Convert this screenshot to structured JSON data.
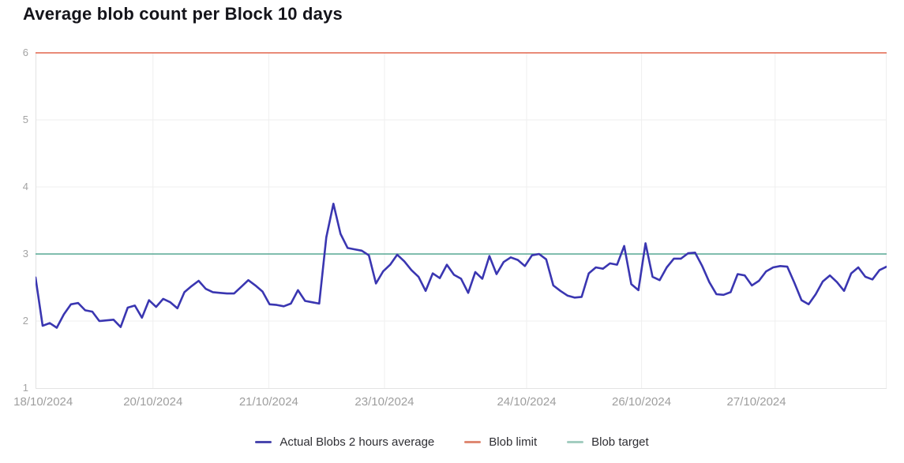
{
  "title": "Average blob count per Block 10 days",
  "chart_data": {
    "type": "line",
    "title": "Average blob count per Block 10 days",
    "xlabel": "",
    "ylabel": "",
    "ylim": [
      1,
      6
    ],
    "y_ticks": [
      1,
      2,
      3,
      4,
      5,
      6
    ],
    "grid": true,
    "x_axis_kind": "time",
    "x_tick_labels": [
      "18/10/2024",
      "20/10/2024",
      "21/10/2024",
      "23/10/2024",
      "24/10/2024",
      "26/10/2024",
      "27/10/2024"
    ],
    "x_tick_pct": [
      0.9,
      13.8,
      27.4,
      41.0,
      57.7,
      71.2,
      84.7
    ],
    "v_grid_pct": [
      13.8,
      27.4,
      41.0,
      57.7,
      71.2,
      86.9,
      100
    ],
    "h_grid_values": [
      2,
      3,
      4,
      5
    ],
    "legend_position": "bottom-center",
    "series": [
      {
        "name": "Actual Blobs 2 hours average",
        "kind": "data-line",
        "color": "#3a36b1",
        "marker_color": "#4a47ae",
        "points_interval": "2 hours",
        "values": [
          2.65,
          1.93,
          1.97,
          1.9,
          2.1,
          2.25,
          2.27,
          2.16,
          2.14,
          2.0,
          2.01,
          2.02,
          1.91,
          2.2,
          2.23,
          2.05,
          2.31,
          2.21,
          2.33,
          2.28,
          2.19,
          2.43,
          2.52,
          2.6,
          2.48,
          2.43,
          2.42,
          2.41,
          2.41,
          2.51,
          2.61,
          2.53,
          2.44,
          2.25,
          2.24,
          2.22,
          2.26,
          2.46,
          2.3,
          2.28,
          2.26,
          3.25,
          3.75,
          3.3,
          3.09,
          3.07,
          3.05,
          2.98,
          2.56,
          2.74,
          2.84,
          2.99,
          2.89,
          2.76,
          2.66,
          2.45,
          2.71,
          2.64,
          2.84,
          2.69,
          2.63,
          2.42,
          2.73,
          2.63,
          2.97,
          2.7,
          2.88,
          2.95,
          2.91,
          2.82,
          2.98,
          3.0,
          2.92,
          2.53,
          2.45,
          2.38,
          2.35,
          2.36,
          2.71,
          2.8,
          2.78,
          2.86,
          2.84,
          3.12,
          2.55,
          2.46,
          3.16,
          2.66,
          2.61,
          2.8,
          2.93,
          2.93,
          3.01,
          3.02,
          2.82,
          2.58,
          2.4,
          2.39,
          2.43,
          2.7,
          2.68,
          2.53,
          2.6,
          2.74,
          2.8,
          2.82,
          2.81,
          2.57,
          2.31,
          2.25,
          2.4,
          2.59,
          2.68,
          2.58,
          2.45,
          2.71,
          2.8,
          2.66,
          2.62,
          2.76,
          2.81
        ]
      },
      {
        "name": "Blob limit",
        "kind": "horizontal-line",
        "color": "#e2654c",
        "marker_color": "#df8973",
        "value": 6
      },
      {
        "name": "Blob target",
        "kind": "horizontal-line",
        "color": "#57a794",
        "marker_color": "#a3cdc0",
        "value": 3
      }
    ],
    "colors": {
      "grid_line": "#efefef",
      "axis_line": "#e3e3e3",
      "x_tick_text": "#9e9e9e",
      "y_tick_text": "#a3a3a3",
      "legend_text": "#2e2e33",
      "title_text": "#14141a",
      "background": "#ffffff"
    }
  }
}
